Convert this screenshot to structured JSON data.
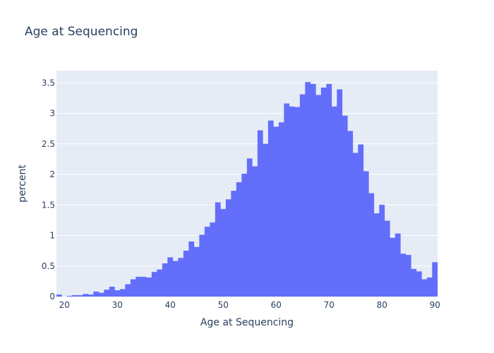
{
  "chart_data": {
    "type": "bar",
    "title": "Age at Sequencing",
    "xlabel": "Age at Sequencing",
    "ylabel": "percent",
    "xlim": [
      18.5,
      90.5
    ],
    "ylim": [
      0,
      3.7
    ],
    "x_ticks": [
      20,
      30,
      40,
      50,
      60,
      70,
      80,
      90
    ],
    "y_ticks": [
      0,
      0.5,
      1,
      1.5,
      2,
      2.5,
      3,
      3.5
    ],
    "y_tick_labels": [
      "0",
      "0.5",
      "1",
      "1.5",
      "2",
      "2.5",
      "3",
      "3.5"
    ],
    "bin_width": 1,
    "bar_color": "#636efa",
    "plot_bg": "#e5ecf6",
    "grid": true,
    "x": [
      19,
      20,
      21,
      22,
      23,
      24,
      25,
      26,
      27,
      28,
      29,
      30,
      31,
      32,
      33,
      34,
      35,
      36,
      37,
      38,
      39,
      40,
      41,
      42,
      43,
      44,
      45,
      46,
      47,
      48,
      49,
      50,
      51,
      52,
      53,
      54,
      55,
      56,
      57,
      58,
      59,
      60,
      61,
      62,
      63,
      64,
      65,
      66,
      67,
      68,
      69,
      70,
      71,
      72,
      73,
      74,
      75,
      76,
      77,
      78,
      79,
      80,
      81,
      82,
      83,
      84,
      85,
      86,
      87,
      88,
      89,
      90
    ],
    "values": [
      0.03,
      0.0,
      0.01,
      0.02,
      0.02,
      0.04,
      0.03,
      0.08,
      0.06,
      0.11,
      0.16,
      0.1,
      0.12,
      0.2,
      0.28,
      0.32,
      0.32,
      0.31,
      0.4,
      0.44,
      0.54,
      0.64,
      0.58,
      0.63,
      0.75,
      0.9,
      0.81,
      1.01,
      1.14,
      1.21,
      1.54,
      1.43,
      1.59,
      1.73,
      1.87,
      2.01,
      2.26,
      2.13,
      2.72,
      2.5,
      2.88,
      2.78,
      2.85,
      3.16,
      3.11,
      3.1,
      3.31,
      3.51,
      3.48,
      3.3,
      3.42,
      3.48,
      3.11,
      3.39,
      2.96,
      2.71,
      2.35,
      2.49,
      2.05,
      1.69,
      1.36,
      1.5,
      1.24,
      0.96,
      1.03,
      0.7,
      0.68,
      0.45,
      0.41,
      0.28,
      0.31,
      0.56
    ]
  }
}
